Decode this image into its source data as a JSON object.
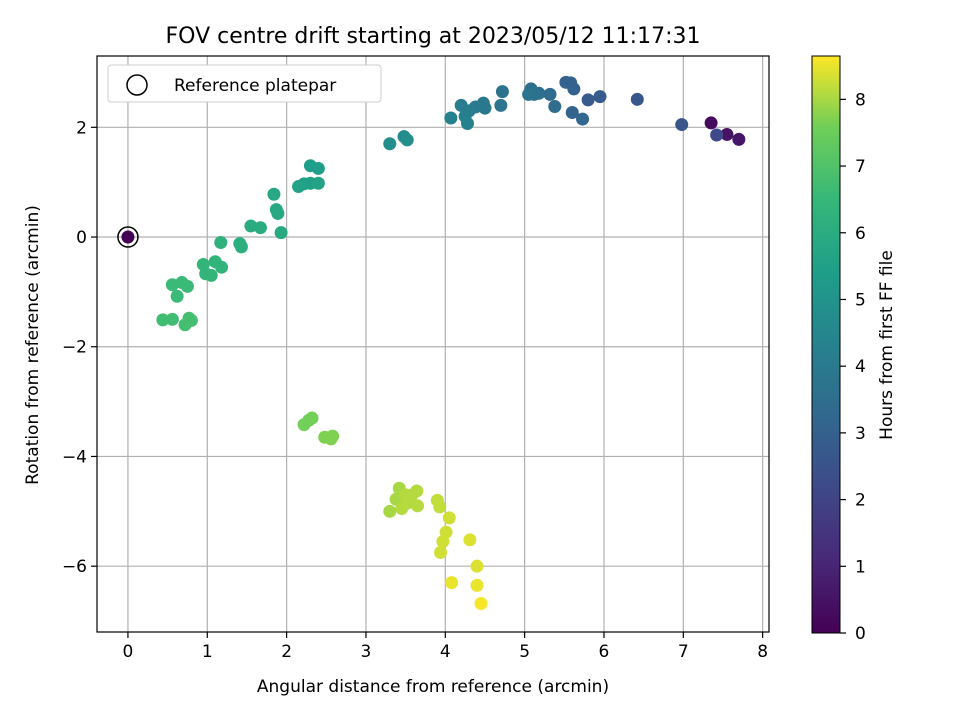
{
  "chart_data": {
    "type": "scatter",
    "title": "FOV centre drift starting at 2023/05/12 11:17:31",
    "xlabel": "Angular distance from reference (arcmin)",
    "ylabel": "Rotation from reference (arcmin)",
    "xlim": [
      -0.39,
      8.08
    ],
    "ylim": [
      -7.2,
      3.3
    ],
    "xticks": [
      0,
      1,
      2,
      3,
      4,
      5,
      6,
      7,
      8
    ],
    "yticks": [
      -6,
      -4,
      -2,
      0,
      2
    ],
    "grid": true,
    "legend": {
      "position": "top-left",
      "entries": [
        "Reference platepar"
      ]
    },
    "reference_point": {
      "x": 0,
      "y": 0
    },
    "colorbar": {
      "label": "Hours from first FF file",
      "range": [
        0,
        8.65
      ],
      "ticks": [
        0,
        1,
        2,
        3,
        4,
        5,
        6,
        7,
        8
      ],
      "colormap": "viridis"
    },
    "series": [
      {
        "points": [
          {
            "x": 0.0,
            "y": 0.0,
            "h": 0.0
          },
          {
            "x": 7.35,
            "y": 2.08,
            "h": 0.3
          },
          {
            "x": 7.55,
            "y": 1.87,
            "h": 0.5
          },
          {
            "x": 7.7,
            "y": 1.78,
            "h": 0.6
          },
          {
            "x": 7.42,
            "y": 1.86,
            "h": 2.2
          },
          {
            "x": 6.98,
            "y": 2.05,
            "h": 2.6
          },
          {
            "x": 6.42,
            "y": 2.51,
            "h": 2.6
          },
          {
            "x": 5.95,
            "y": 2.56,
            "h": 2.8
          },
          {
            "x": 5.8,
            "y": 2.5,
            "h": 2.8
          },
          {
            "x": 5.62,
            "y": 2.7,
            "h": 3.0
          },
          {
            "x": 5.52,
            "y": 2.82,
            "h": 3.0
          },
          {
            "x": 5.58,
            "y": 2.81,
            "h": 3.0
          },
          {
            "x": 5.6,
            "y": 2.27,
            "h": 3.1
          },
          {
            "x": 5.73,
            "y": 2.15,
            "h": 3.2
          },
          {
            "x": 5.38,
            "y": 2.38,
            "h": 3.4
          },
          {
            "x": 5.32,
            "y": 2.6,
            "h": 3.4
          },
          {
            "x": 5.18,
            "y": 2.62,
            "h": 3.5
          },
          {
            "x": 5.12,
            "y": 2.6,
            "h": 3.6
          },
          {
            "x": 5.08,
            "y": 2.7,
            "h": 3.6
          },
          {
            "x": 5.05,
            "y": 2.6,
            "h": 3.7
          },
          {
            "x": 4.72,
            "y": 2.65,
            "h": 3.7
          },
          {
            "x": 4.7,
            "y": 2.4,
            "h": 3.8
          },
          {
            "x": 4.48,
            "y": 2.44,
            "h": 3.9
          },
          {
            "x": 4.5,
            "y": 2.35,
            "h": 3.9
          },
          {
            "x": 4.38,
            "y": 2.37,
            "h": 4.0
          },
          {
            "x": 4.3,
            "y": 2.3,
            "h": 4.1
          },
          {
            "x": 4.2,
            "y": 2.4,
            "h": 4.1
          },
          {
            "x": 4.25,
            "y": 2.2,
            "h": 4.2
          },
          {
            "x": 4.07,
            "y": 2.17,
            "h": 4.3
          },
          {
            "x": 4.28,
            "y": 2.07,
            "h": 4.3
          },
          {
            "x": 3.48,
            "y": 1.83,
            "h": 4.7
          },
          {
            "x": 3.52,
            "y": 1.77,
            "h": 4.8
          },
          {
            "x": 3.3,
            "y": 1.7,
            "h": 4.8
          },
          {
            "x": 2.3,
            "y": 1.3,
            "h": 5.4
          },
          {
            "x": 2.4,
            "y": 1.25,
            "h": 5.4
          },
          {
            "x": 2.22,
            "y": 0.97,
            "h": 5.5
          },
          {
            "x": 2.3,
            "y": 0.98,
            "h": 5.5
          },
          {
            "x": 2.4,
            "y": 0.98,
            "h": 5.6
          },
          {
            "x": 2.15,
            "y": 0.92,
            "h": 5.6
          },
          {
            "x": 1.84,
            "y": 0.78,
            "h": 5.8
          },
          {
            "x": 1.87,
            "y": 0.5,
            "h": 5.8
          },
          {
            "x": 1.89,
            "y": 0.43,
            "h": 5.9
          },
          {
            "x": 1.93,
            "y": 0.08,
            "h": 5.9
          },
          {
            "x": 1.55,
            "y": 0.2,
            "h": 6.0
          },
          {
            "x": 1.67,
            "y": 0.17,
            "h": 6.0
          },
          {
            "x": 1.41,
            "y": -0.12,
            "h": 6.1
          },
          {
            "x": 1.43,
            "y": -0.18,
            "h": 6.1
          },
          {
            "x": 1.17,
            "y": -0.1,
            "h": 6.2
          },
          {
            "x": 1.1,
            "y": -0.45,
            "h": 6.3
          },
          {
            "x": 1.18,
            "y": -0.55,
            "h": 6.3
          },
          {
            "x": 0.95,
            "y": -0.5,
            "h": 6.4
          },
          {
            "x": 0.98,
            "y": -0.67,
            "h": 6.4
          },
          {
            "x": 1.05,
            "y": -0.7,
            "h": 6.4
          },
          {
            "x": 0.56,
            "y": -0.87,
            "h": 6.6
          },
          {
            "x": 0.68,
            "y": -0.83,
            "h": 6.6
          },
          {
            "x": 0.75,
            "y": -0.9,
            "h": 6.6
          },
          {
            "x": 0.62,
            "y": -1.08,
            "h": 6.6
          },
          {
            "x": 0.44,
            "y": -1.51,
            "h": 6.7
          },
          {
            "x": 0.56,
            "y": -1.5,
            "h": 6.7
          },
          {
            "x": 0.72,
            "y": -1.6,
            "h": 6.8
          },
          {
            "x": 0.77,
            "y": -1.48,
            "h": 6.8
          },
          {
            "x": 0.8,
            "y": -1.52,
            "h": 6.8
          },
          {
            "x": 2.22,
            "y": -3.42,
            "h": 7.6
          },
          {
            "x": 2.28,
            "y": -3.34,
            "h": 7.6
          },
          {
            "x": 2.32,
            "y": -3.3,
            "h": 7.6
          },
          {
            "x": 2.48,
            "y": -3.65,
            "h": 7.7
          },
          {
            "x": 2.56,
            "y": -3.68,
            "h": 7.7
          },
          {
            "x": 2.58,
            "y": -3.63,
            "h": 7.7
          },
          {
            "x": 3.3,
            "y": -5.0,
            "h": 8.0
          },
          {
            "x": 3.38,
            "y": -4.78,
            "h": 8.0
          },
          {
            "x": 3.42,
            "y": -4.58,
            "h": 8.0
          },
          {
            "x": 3.45,
            "y": -4.95,
            "h": 8.1
          },
          {
            "x": 3.5,
            "y": -4.7,
            "h": 8.1
          },
          {
            "x": 3.52,
            "y": -4.85,
            "h": 8.1
          },
          {
            "x": 3.58,
            "y": -4.7,
            "h": 8.1
          },
          {
            "x": 3.64,
            "y": -4.63,
            "h": 8.1
          },
          {
            "x": 3.65,
            "y": -4.9,
            "h": 8.1
          },
          {
            "x": 3.9,
            "y": -4.8,
            "h": 8.2
          },
          {
            "x": 3.93,
            "y": -4.92,
            "h": 8.2
          },
          {
            "x": 4.05,
            "y": -5.12,
            "h": 8.3
          },
          {
            "x": 4.01,
            "y": -5.38,
            "h": 8.3
          },
          {
            "x": 3.97,
            "y": -5.55,
            "h": 8.3
          },
          {
            "x": 3.94,
            "y": -5.75,
            "h": 8.3
          },
          {
            "x": 4.31,
            "y": -5.52,
            "h": 8.4
          },
          {
            "x": 4.4,
            "y": -6.0,
            "h": 8.4
          },
          {
            "x": 4.08,
            "y": -6.3,
            "h": 8.5
          },
          {
            "x": 4.4,
            "y": -6.35,
            "h": 8.5
          },
          {
            "x": 4.45,
            "y": -6.68,
            "h": 8.6
          }
        ]
      }
    ]
  }
}
